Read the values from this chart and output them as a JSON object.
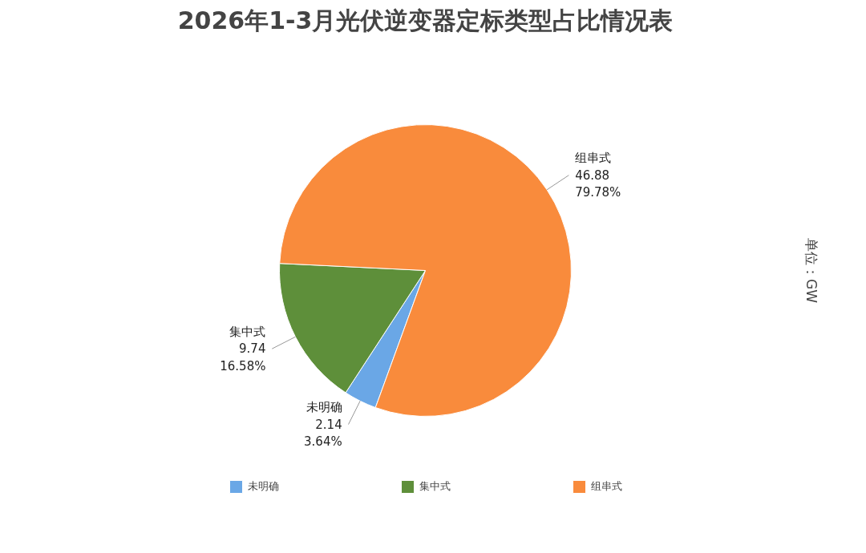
{
  "chart_data": {
    "type": "pie",
    "title": "2026年1-3月光伏逆变器定标类型占比情况表",
    "categories": [
      "未明确",
      "集中式",
      "组串式"
    ],
    "values": [
      2.14,
      9.74,
      46.88
    ],
    "colors": [
      "#6aa7e6",
      "#5e8f3a",
      "#f98b3c"
    ],
    "value_labels": [
      "2.14\n3.64%",
      "9.74\n16.58%",
      "46.88\n79.78%"
    ],
    "legend": "bottom",
    "annotations": [
      "单位：GW"
    ]
  }
}
